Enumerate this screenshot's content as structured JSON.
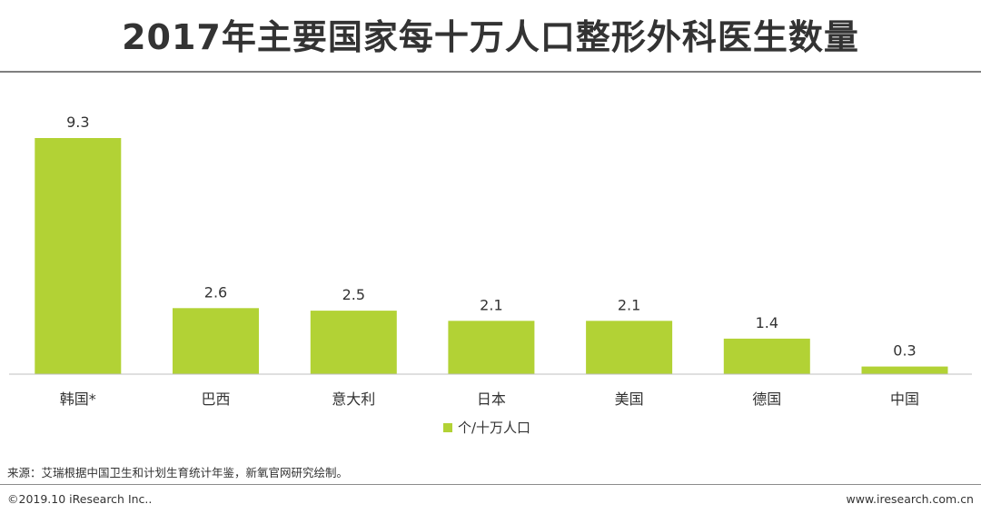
{
  "title": "2017年主要国家每十万人口整形外科医生数量",
  "chart_data": {
    "type": "bar",
    "categories": [
      "韩国*",
      "巴西",
      "意大利",
      "日本",
      "美国",
      "德国",
      "中国"
    ],
    "series": [
      {
        "name": "个/十万人口",
        "values": [
          9.3,
          2.6,
          2.5,
          2.1,
          2.1,
          1.4,
          0.3
        ]
      }
    ],
    "value_labels": [
      "9.3",
      "2.6",
      "2.5",
      "2.1",
      "2.1",
      "1.4",
      "0.3"
    ],
    "ylim": [
      0,
      9.3
    ],
    "grid": false,
    "legend_position": "bottom",
    "bar_color": "#b2d235",
    "axis_color": "#bfbfbf"
  },
  "source": "来源：艾瑞根据中国卫生和计划生育统计年鉴，新氧官网研究绘制。",
  "copyright": "©2019.10 iResearch Inc..",
  "website": "www.iresearch.com.cn"
}
